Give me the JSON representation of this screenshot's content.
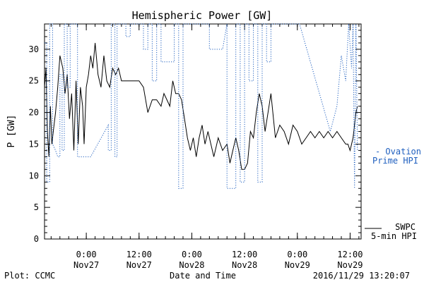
{
  "chart_data": {
    "type": "line",
    "title": "Hemispheric Power [GW]",
    "xlabel": "Date and Time",
    "ylabel": "P [GW]",
    "ylim": [
      0,
      34
    ],
    "yticks": [
      0,
      5,
      10,
      15,
      20,
      25,
      30
    ],
    "xlim": [
      "2016-11-26T14:30",
      "2016-11-29T14:30"
    ],
    "xticks": [
      {
        "time": "2016-11-27T00:00",
        "label_time": "0:00",
        "label_date": "Nov27"
      },
      {
        "time": "2016-11-27T12:00",
        "label_time": "12:00",
        "label_date": "Nov27"
      },
      {
        "time": "2016-11-28T00:00",
        "label_time": "0:00",
        "label_date": "Nov28"
      },
      {
        "time": "2016-11-28T12:00",
        "label_time": "12:00",
        "label_date": "Nov28"
      },
      {
        "time": "2016-11-29T00:00",
        "label_time": "0:00",
        "label_date": "Nov29"
      },
      {
        "time": "2016-11-29T12:00",
        "label_time": "12:00",
        "label_date": "Nov29"
      }
    ],
    "series": [
      {
        "name": "SWPC 5-min HPI",
        "legend_line1": "SWPC",
        "legend_line2": "5-min HPI",
        "color": "#000000",
        "style": "solid",
        "x": [
          "2016-11-26T14:30",
          "2016-11-26T14:50",
          "2016-11-26T15:10",
          "2016-11-26T15:30",
          "2016-11-26T15:50",
          "2016-11-26T16:10",
          "2016-11-26T16:30",
          "2016-11-26T17:00",
          "2016-11-26T17:30",
          "2016-11-26T18:00",
          "2016-11-26T18:40",
          "2016-11-26T19:10",
          "2016-11-26T19:40",
          "2016-11-26T20:10",
          "2016-11-26T20:40",
          "2016-11-26T21:10",
          "2016-11-26T21:40",
          "2016-11-26T22:10",
          "2016-11-26T22:40",
          "2016-11-26T23:10",
          "2016-11-26T23:30",
          "2016-11-27T00:00",
          "2016-11-27T00:30",
          "2016-11-27T01:00",
          "2016-11-27T01:30",
          "2016-11-27T02:00",
          "2016-11-27T02:40",
          "2016-11-27T03:20",
          "2016-11-27T04:00",
          "2016-11-27T04:40",
          "2016-11-27T05:20",
          "2016-11-27T06:00",
          "2016-11-27T06:40",
          "2016-11-27T07:20",
          "2016-11-27T08:00",
          "2016-11-27T08:40",
          "2016-11-27T09:20",
          "2016-11-27T10:00",
          "2016-11-27T11:00",
          "2016-11-27T12:00",
          "2016-11-27T13:00",
          "2016-11-27T14:00",
          "2016-11-27T15:00",
          "2016-11-27T16:00",
          "2016-11-27T17:00",
          "2016-11-27T17:40",
          "2016-11-27T18:20",
          "2016-11-27T19:00",
          "2016-11-27T19:40",
          "2016-11-27T20:20",
          "2016-11-27T21:00",
          "2016-11-27T21:40",
          "2016-11-27T22:20",
          "2016-11-27T23:00",
          "2016-11-27T23:40",
          "2016-11-28T00:20",
          "2016-11-28T01:00",
          "2016-11-28T01:40",
          "2016-11-28T02:20",
          "2016-11-28T03:00",
          "2016-11-28T03:40",
          "2016-11-28T04:20",
          "2016-11-28T05:00",
          "2016-11-28T06:00",
          "2016-11-28T07:00",
          "2016-11-28T08:00",
          "2016-11-28T08:40",
          "2016-11-28T09:20",
          "2016-11-28T10:00",
          "2016-11-28T10:40",
          "2016-11-28T11:20",
          "2016-11-28T12:00",
          "2016-11-28T12:40",
          "2016-11-28T13:20",
          "2016-11-28T14:00",
          "2016-11-28T14:40",
          "2016-11-28T15:20",
          "2016-11-28T16:00",
          "2016-11-28T16:40",
          "2016-11-28T17:20",
          "2016-11-28T18:00",
          "2016-11-28T19:00",
          "2016-11-28T20:00",
          "2016-11-28T21:00",
          "2016-11-28T22:00",
          "2016-11-28T23:00",
          "2016-11-29T00:00",
          "2016-11-29T01:00",
          "2016-11-29T02:00",
          "2016-11-29T03:00",
          "2016-11-29T04:00",
          "2016-11-29T05:00",
          "2016-11-29T06:00",
          "2016-11-29T07:00",
          "2016-11-29T08:00",
          "2016-11-29T09:00",
          "2016-11-29T10:00",
          "2016-11-29T11:00",
          "2016-11-29T11:30",
          "2016-11-29T12:00",
          "2016-11-29T12:40",
          "2016-11-29T13:20",
          "2016-11-29T13:40"
        ],
        "y": [
          24,
          27,
          17,
          13,
          21,
          15,
          17,
          20,
          24,
          29,
          27,
          23,
          26,
          19,
          23,
          14,
          25,
          15,
          24,
          21,
          15,
          24,
          26,
          29,
          27,
          31,
          26,
          24,
          29,
          25,
          24,
          27,
          26,
          27,
          25,
          25,
          25,
          25,
          25,
          25,
          24,
          20,
          22,
          22,
          21,
          23,
          22,
          21,
          25,
          23,
          23,
          22,
          19,
          16,
          14,
          16,
          13,
          16,
          18,
          15,
          17,
          15,
          13,
          16,
          14,
          15,
          12,
          14,
          16,
          14,
          11,
          11,
          12,
          17,
          16,
          20,
          23,
          21,
          17,
          20,
          23,
          16,
          18,
          17,
          15,
          18,
          17,
          15,
          16,
          17,
          16,
          17,
          16,
          17,
          16,
          17,
          16,
          15,
          15,
          14,
          16,
          20,
          21
        ]
      },
      {
        "name": "Ovation Prime HPI",
        "legend_line1": "- Ovation",
        "legend_line2": "Prime HPI",
        "color": "#1f5fbf",
        "style": "dotted",
        "x": [
          "2016-11-26T14:30",
          "2016-11-26T15:00",
          "2016-11-26T15:00",
          "2016-11-26T15:40",
          "2016-11-26T15:40",
          "2016-11-26T16:20",
          "2016-11-26T16:20",
          "2016-11-26T17:00",
          "2016-11-26T17:30",
          "2016-11-26T18:00",
          "2016-11-26T18:00",
          "2016-11-26T18:30",
          "2016-11-26T18:30",
          "2016-11-26T19:00",
          "2016-11-26T19:00",
          "2016-11-26T19:40",
          "2016-11-26T19:40",
          "2016-11-26T20:20",
          "2016-11-26T20:20",
          "2016-11-26T22:00",
          "2016-11-26T22:00",
          "2016-11-27T01:00",
          "2016-11-27T05:00",
          "2016-11-27T05:00",
          "2016-11-27T05:40",
          "2016-11-27T05:40",
          "2016-11-27T06:30",
          "2016-11-27T06:30",
          "2016-11-27T07:00",
          "2016-11-27T07:00",
          "2016-11-27T09:00",
          "2016-11-27T09:00",
          "2016-11-27T10:00",
          "2016-11-27T10:00",
          "2016-11-27T13:00",
          "2016-11-27T13:00",
          "2016-11-27T14:00",
          "2016-11-27T14:00",
          "2016-11-27T15:00",
          "2016-11-27T15:00",
          "2016-11-27T16:00",
          "2016-11-27T16:00",
          "2016-11-27T17:00",
          "2016-11-27T17:00",
          "2016-11-27T20:00",
          "2016-11-27T20:00",
          "2016-11-27T21:00",
          "2016-11-27T21:00",
          "2016-11-27T22:00",
          "2016-11-27T22:00",
          "2016-11-28T04:00",
          "2016-11-28T04:00",
          "2016-11-28T07:00",
          "2016-11-28T08:00",
          "2016-11-28T08:00",
          "2016-11-28T10:00",
          "2016-11-28T10:00",
          "2016-11-28T11:00",
          "2016-11-28T11:00",
          "2016-11-28T12:00",
          "2016-11-28T12:00",
          "2016-11-28T13:00",
          "2016-11-28T13:00",
          "2016-11-28T14:00",
          "2016-11-28T14:00",
          "2016-11-28T15:00",
          "2016-11-28T15:00",
          "2016-11-28T16:00",
          "2016-11-28T16:00",
          "2016-11-28T17:00",
          "2016-11-28T17:00",
          "2016-11-28T18:00",
          "2016-11-28T18:00",
          "2016-11-29T00:30",
          "2016-11-29T07:30",
          "2016-11-29T07:30",
          "2016-11-29T09:00",
          "2016-11-29T09:00",
          "2016-11-29T10:00",
          "2016-11-29T10:00",
          "2016-11-29T11:00",
          "2016-11-29T11:00",
          "2016-11-29T11:40",
          "2016-11-29T11:40",
          "2016-11-29T12:20",
          "2016-11-29T12:20",
          "2016-11-29T12:40",
          "2016-11-29T12:40",
          "2016-11-29T13:00",
          "2016-11-29T13:00",
          "2016-11-29T13:20",
          "2016-11-29T13:20",
          "2016-11-29T13:40"
        ],
        "y": [
          31,
          31,
          9,
          9,
          34,
          34,
          15,
          14,
          13,
          13,
          26,
          26,
          14,
          14,
          34,
          34,
          24,
          24,
          34,
          34,
          13,
          13,
          18,
          14,
          14,
          34,
          34,
          13,
          13,
          34,
          34,
          32,
          32,
          34,
          34,
          30,
          30,
          34,
          34,
          25,
          25,
          34,
          34,
          28,
          28,
          34,
          34,
          8,
          8,
          34,
          34,
          30,
          30,
          34,
          8,
          8,
          34,
          34,
          9,
          9,
          34,
          34,
          25,
          25,
          34,
          34,
          9,
          9,
          34,
          34,
          28,
          28,
          34,
          34,
          17,
          17,
          21,
          21,
          29,
          29,
          25,
          25,
          34,
          34,
          27,
          27,
          34,
          34,
          8,
          8,
          34,
          34,
          14
        ]
      }
    ]
  },
  "footer": {
    "plot_credit": "Plot: CCMC",
    "timestamp": "2016/11/29 13:20:07"
  }
}
